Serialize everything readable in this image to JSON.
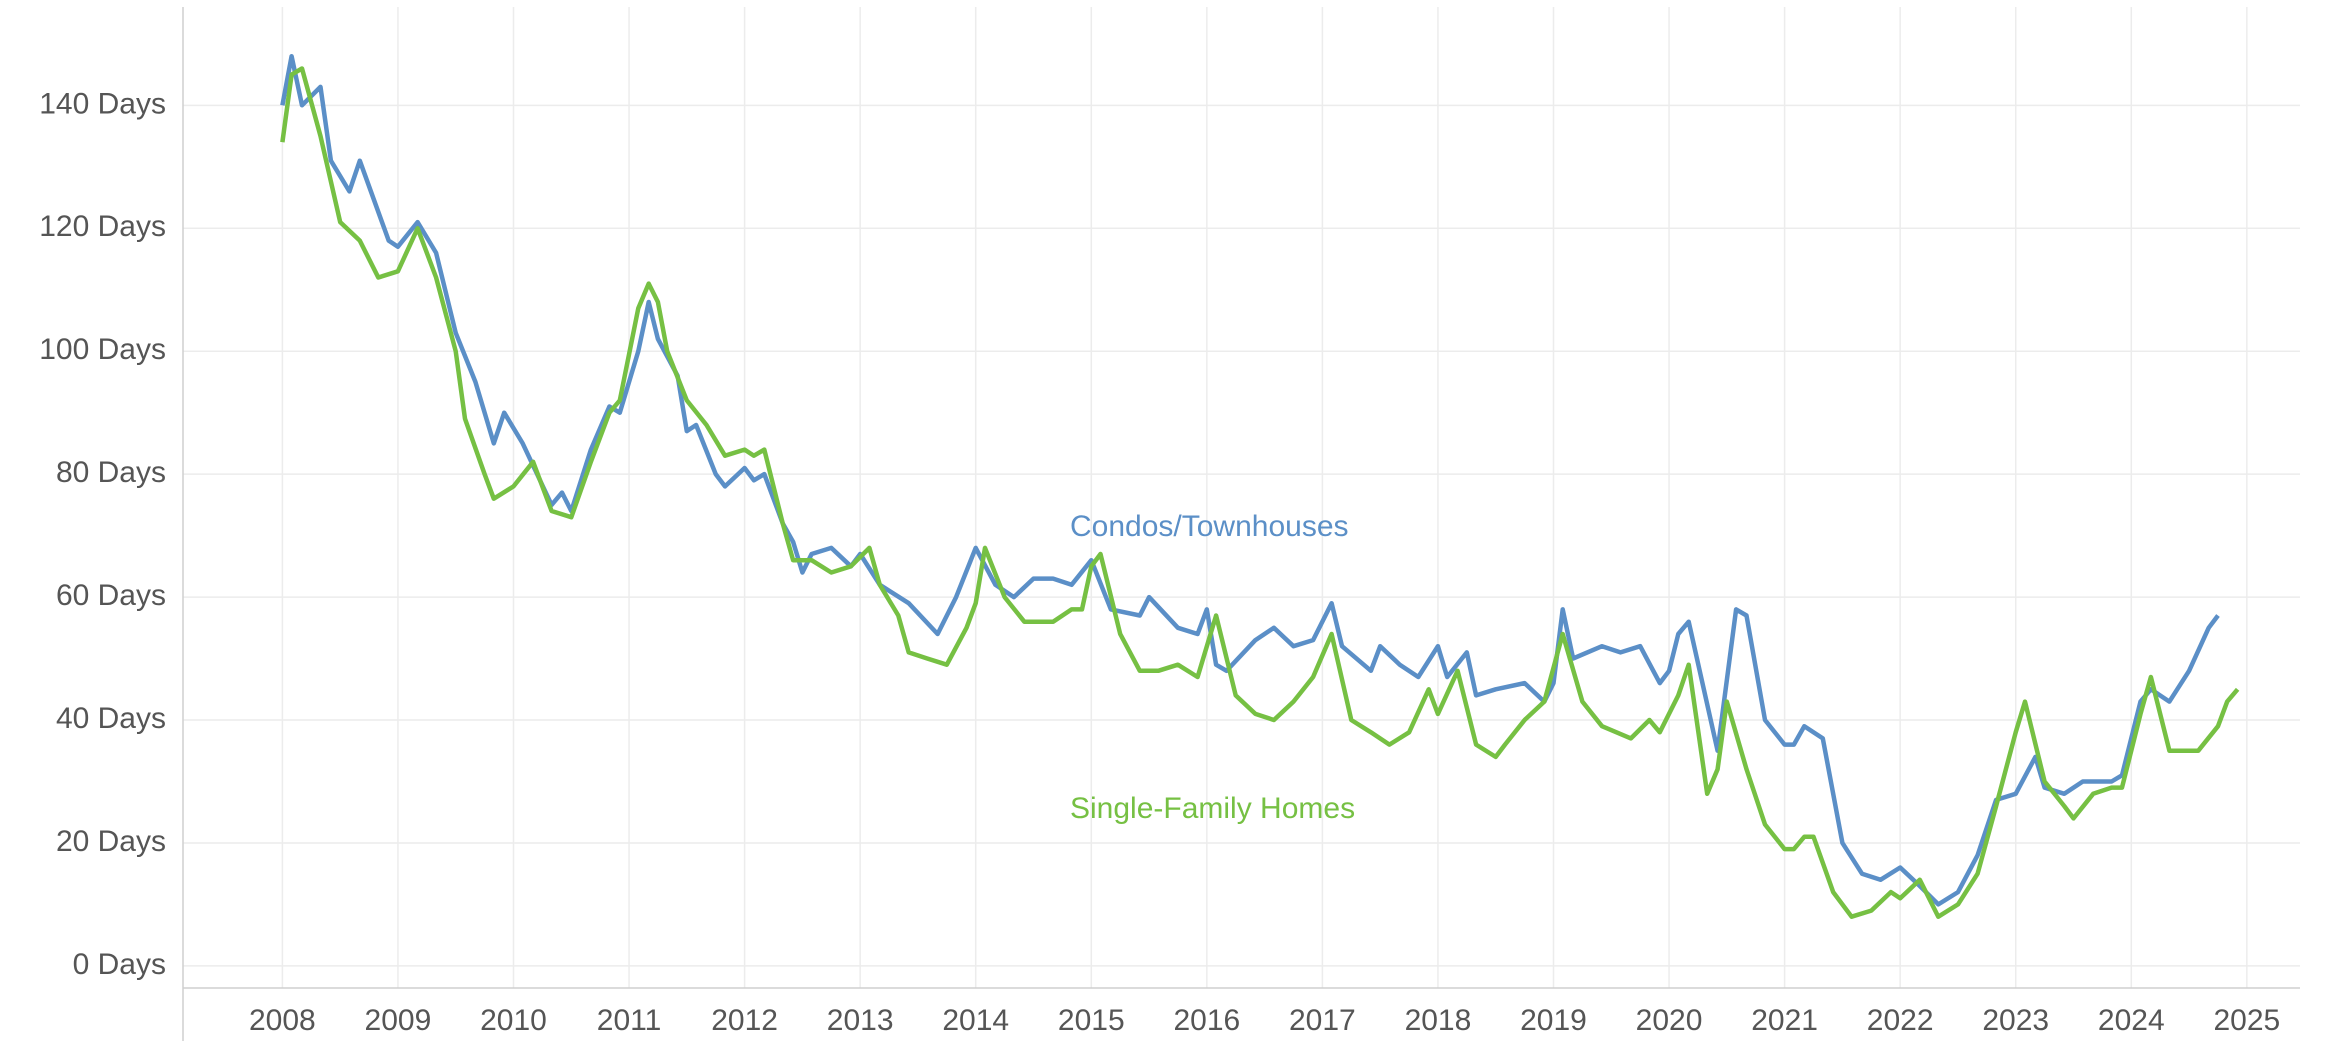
{
  "chart_data": {
    "type": "line",
    "xlim": [
      2007.14,
      2025.46
    ],
    "xticks": [
      2008,
      2009,
      2010,
      2011,
      2012,
      2013,
      2014,
      2015,
      2016,
      2017,
      2018,
      2019,
      2020,
      2021,
      2022,
      2023,
      2024,
      2025
    ],
    "ylim": [
      -3.6,
      156
    ],
    "yticks": [
      {
        "value": 0,
        "label": "0 Days"
      },
      {
        "value": 20,
        "label": "20 Days"
      },
      {
        "value": 40,
        "label": "40 Days"
      },
      {
        "value": 60,
        "label": "60 Days"
      },
      {
        "value": 80,
        "label": "80 Days"
      },
      {
        "value": 100,
        "label": "100 Days"
      },
      {
        "value": 120,
        "label": "120 Days"
      },
      {
        "value": 140,
        "label": "140 Days"
      }
    ],
    "grid": true,
    "series": [
      {
        "name": "Condos/Townhouses",
        "color": "#5b8fc7",
        "x": [
          2008.0,
          2008.08,
          2008.17,
          2008.33,
          2008.42,
          2008.58,
          2008.67,
          2008.92,
          2009.0,
          2009.17,
          2009.33,
          2009.5,
          2009.67,
          2009.83,
          2009.92,
          2010.08,
          2010.33,
          2010.42,
          2010.5,
          2010.67,
          2010.83,
          2010.92,
          2011.08,
          2011.17,
          2011.25,
          2011.42,
          2011.5,
          2011.58,
          2011.75,
          2011.83,
          2012.0,
          2012.08,
          2012.17,
          2012.33,
          2012.42,
          2012.5,
          2012.58,
          2012.75,
          2012.92,
          2013.0,
          2013.17,
          2013.42,
          2013.67,
          2013.83,
          2014.0,
          2014.17,
          2014.33,
          2014.5,
          2014.67,
          2014.83,
          2015.0,
          2015.17,
          2015.42,
          2015.5,
          2015.75,
          2015.92,
          2016.0,
          2016.08,
          2016.17,
          2016.42,
          2016.58,
          2016.75,
          2016.92,
          2017.08,
          2017.17,
          2017.42,
          2017.5,
          2017.67,
          2017.83,
          2018.0,
          2018.08,
          2018.25,
          2018.33,
          2018.5,
          2018.75,
          2018.92,
          2019.0,
          2019.08,
          2019.17,
          2019.42,
          2019.58,
          2019.75,
          2019.92,
          2020.0,
          2020.08,
          2020.17,
          2020.42,
          2020.58,
          2020.67,
          2020.83,
          2021.0,
          2021.08,
          2021.17,
          2021.33,
          2021.5,
          2021.67,
          2021.83,
          2022.0,
          2022.17,
          2022.33,
          2022.5,
          2022.67,
          2022.83,
          2023.0,
          2023.17,
          2023.25,
          2023.42,
          2023.58,
          2023.83,
          2023.92,
          2024.08,
          2024.17,
          2024.33,
          2024.5,
          2024.67,
          2024.75
        ],
        "values": [
          140,
          148,
          140,
          143,
          131,
          126,
          131,
          118,
          117,
          121,
          116,
          103,
          95,
          85,
          90,
          85,
          75,
          77,
          74,
          84,
          91,
          90,
          100,
          108,
          102,
          96,
          87,
          88,
          80,
          78,
          81,
          79,
          80,
          72,
          69,
          64,
          67,
          68,
          65,
          67,
          62,
          59,
          54,
          60,
          68,
          62,
          60,
          63,
          63,
          62,
          66,
          58,
          57,
          60,
          55,
          54,
          58,
          49,
          48,
          53,
          55,
          52,
          53,
          59,
          52,
          48,
          52,
          49,
          47,
          52,
          47,
          51,
          44,
          45,
          46,
          43,
          46,
          58,
          50,
          52,
          51,
          52,
          46,
          48,
          54,
          56,
          35,
          58,
          57,
          40,
          36,
          36,
          39,
          37,
          20,
          15,
          14,
          16,
          13,
          10,
          12,
          18,
          27,
          28,
          34,
          29,
          28,
          30,
          30,
          31,
          43,
          45,
          43,
          48,
          55,
          57
        ]
      },
      {
        "name": "Single-Family Homes",
        "color": "#76c043",
        "x": [
          2008.0,
          2008.08,
          2008.17,
          2008.33,
          2008.5,
          2008.67,
          2008.83,
          2009.0,
          2009.17,
          2009.33,
          2009.5,
          2009.58,
          2009.75,
          2009.83,
          2010.0,
          2010.17,
          2010.33,
          2010.5,
          2010.67,
          2010.83,
          2010.92,
          2011.08,
          2011.17,
          2011.25,
          2011.33,
          2011.5,
          2011.67,
          2011.83,
          2012.0,
          2012.08,
          2012.17,
          2012.33,
          2012.42,
          2012.58,
          2012.75,
          2012.92,
          2013.08,
          2013.17,
          2013.33,
          2013.42,
          2013.58,
          2013.75,
          2013.92,
          2014.0,
          2014.08,
          2014.25,
          2014.42,
          2014.67,
          2014.83,
          2014.92,
          2015.0,
          2015.08,
          2015.25,
          2015.42,
          2015.58,
          2015.75,
          2015.92,
          2016.08,
          2016.25,
          2016.42,
          2016.58,
          2016.75,
          2016.92,
          2017.08,
          2017.25,
          2017.42,
          2017.58,
          2017.75,
          2017.92,
          2018.0,
          2018.17,
          2018.33,
          2018.5,
          2018.58,
          2018.75,
          2018.92,
          2019.08,
          2019.25,
          2019.42,
          2019.67,
          2019.83,
          2019.92,
          2020.08,
          2020.17,
          2020.33,
          2020.42,
          2020.5,
          2020.67,
          2020.83,
          2021.0,
          2021.08,
          2021.17,
          2021.25,
          2021.42,
          2021.58,
          2021.75,
          2021.92,
          2022.0,
          2022.17,
          2022.33,
          2022.5,
          2022.67,
          2022.83,
          2023.0,
          2023.08,
          2023.25,
          2023.42,
          2023.5,
          2023.67,
          2023.83,
          2023.92,
          2024.08,
          2024.17,
          2024.33,
          2024.58,
          2024.75,
          2024.83,
          2024.92
        ],
        "values": [
          134,
          145,
          146,
          135,
          121,
          118,
          112,
          113,
          120,
          112,
          100,
          89,
          80,
          76,
          78,
          82,
          74,
          73,
          82,
          90,
          92,
          107,
          111,
          108,
          100,
          92,
          88,
          83,
          84,
          83,
          84,
          72,
          66,
          66,
          64,
          65,
          68,
          62,
          57,
          51,
          50,
          49,
          55,
          59,
          68,
          60,
          56,
          56,
          58,
          58,
          65,
          67,
          54,
          48,
          48,
          49,
          47,
          57,
          44,
          41,
          40,
          43,
          47,
          54,
          40,
          38,
          36,
          38,
          45,
          41,
          48,
          36,
          34,
          36,
          40,
          43,
          54,
          43,
          39,
          37,
          40,
          38,
          44,
          49,
          28,
          32,
          43,
          32,
          23,
          19,
          19,
          21,
          21,
          12,
          8,
          9,
          12,
          11,
          14,
          8,
          10,
          15,
          26,
          38,
          43,
          30,
          26,
          24,
          28,
          29,
          29,
          41,
          47,
          35,
          35,
          39,
          43,
          45
        ]
      }
    ]
  }
}
